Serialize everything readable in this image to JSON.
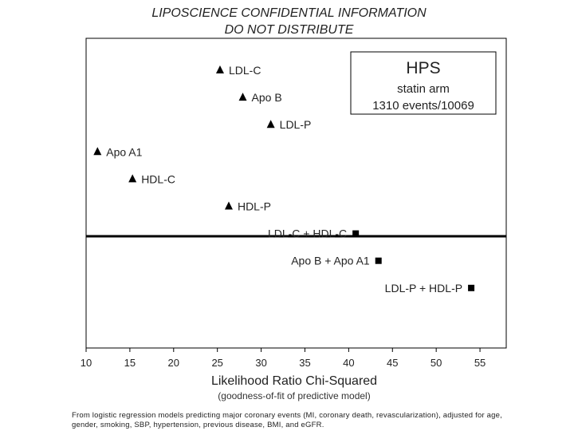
{
  "header": {
    "line1": "LIPOSCIENCE CONFIDENTIAL INFORMATION",
    "line2": "DO NOT DISTRIBUTE"
  },
  "chart_data": {
    "type": "scatter",
    "xlabel": "Likelihood Ratio Chi-Squared",
    "xlabel_sub": "(goodness-of-fit of predictive model)",
    "xlim": [
      10,
      58
    ],
    "xticks": [
      10,
      15,
      20,
      25,
      30,
      35,
      40,
      45,
      50,
      55
    ],
    "grid": false,
    "legend": {
      "title": "HPS",
      "line1": "statin arm",
      "line2": "1310 events/10069",
      "placement": "top-right"
    },
    "series": [
      {
        "marker": "triangle",
        "label_side": "right",
        "points": [
          {
            "label": "LDL-C",
            "x": 25.3
          },
          {
            "label": "Apo B",
            "x": 27.9
          },
          {
            "label": "LDL-P",
            "x": 31.1
          },
          {
            "label": "Apo A1",
            "x": 11.3
          },
          {
            "label": "HDL-C",
            "x": 15.3
          },
          {
            "label": "HDL-P",
            "x": 26.3
          }
        ]
      },
      {
        "marker": "square",
        "label_side": "left",
        "points": [
          {
            "label": "LDL-C + HDL-C",
            "x": 40.8
          },
          {
            "label": "Apo B + Apo A1",
            "x": 43.4
          },
          {
            "label": "LDL-P + HDL-P",
            "x": 54.0
          }
        ]
      }
    ],
    "divider": "horizontal line separating single-marker models from combined models"
  },
  "footnote": "From logistic regression models predicting major coronary events (MI, coronary death, revascularization), adjusted for age, gender, smoking, SBP, hypertension, previous disease, BMI, and eGFR.",
  "colors": {
    "marks": "#000000",
    "text": "#222222",
    "background": "#ffffff"
  }
}
